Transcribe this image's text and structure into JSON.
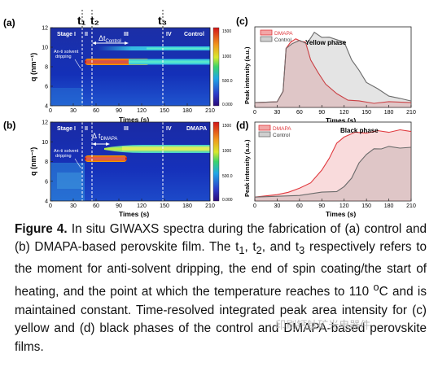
{
  "panels": {
    "a": {
      "letter": "(a)",
      "sample": "Control",
      "stages": [
        "Stage I",
        "II",
        "III",
        "IV"
      ],
      "t_labels": [
        "t₁",
        "t₂",
        "t₃"
      ],
      "interval_label": "Δt",
      "interval_sub": "Control",
      "antisolvent": [
        "An-ti solvent",
        "dripping"
      ],
      "ylabel": "q (nm⁻¹)",
      "xlabel": "Times (s)",
      "yticks": [
        "4",
        "6",
        "8",
        "10",
        "12"
      ],
      "xticks": [
        "0",
        "30",
        "60",
        "90",
        "120",
        "150",
        "180",
        "210"
      ],
      "colorbar_ticks": [
        "1500",
        "1000",
        "500.0",
        "0.000"
      ]
    },
    "b": {
      "letter": "(b)",
      "sample": "DMAPA",
      "stages": [
        "Stage I",
        "II",
        "III",
        "IV"
      ],
      "interval_label": "Δ t",
      "interval_sub": "DMAPA",
      "antisolvent": [
        "An-ti solvent",
        "dripping"
      ],
      "ylabel": "q (nm⁻¹)",
      "xlabel": "Times (s)",
      "yticks": [
        "4",
        "6",
        "8",
        "10",
        "12"
      ],
      "xticks": [
        "0",
        "30",
        "60",
        "90",
        "120",
        "150",
        "180",
        "210"
      ],
      "colorbar_ticks": [
        "1500",
        "1000",
        "500.0",
        "0.000"
      ]
    },
    "c": {
      "letter": "(c)",
      "ylabel": "Peak intensity (a.u.)",
      "xlabel": "Times (s)",
      "phase": "Yellow phase",
      "xticks": [
        "0",
        "30",
        "60",
        "90",
        "120",
        "150",
        "180",
        "210"
      ],
      "legend": [
        "DMAPA",
        "Control"
      ]
    },
    "d": {
      "letter": "(d)",
      "ylabel": "Peak intensity (a.u.)",
      "xlabel": "Times (s)",
      "phase": "Black phase",
      "xticks": [
        "0",
        "30",
        "60",
        "90",
        "120",
        "150",
        "180",
        "210"
      ],
      "legend": [
        "DMAPA",
        "Control"
      ]
    }
  },
  "colors": {
    "dmapa": "#e0393e",
    "control": "#6b6b6b",
    "stage_line": "#ffffff"
  },
  "chart_data": [
    {
      "type": "line",
      "title": "Yellow phase",
      "xlabel": "Times (s)",
      "ylabel": "Peak intensity (a.u.)",
      "xlim": [
        0,
        210
      ],
      "series": [
        {
          "name": "DMAPA",
          "x": [
            0,
            30,
            38,
            42,
            48,
            55,
            62,
            68,
            75,
            85,
            95,
            110,
            125,
            140,
            160,
            180,
            210
          ],
          "y": [
            0.06,
            0.07,
            0.2,
            0.72,
            0.82,
            0.84,
            0.83,
            0.8,
            0.6,
            0.42,
            0.3,
            0.16,
            0.1,
            0.07,
            0.06,
            0.06,
            0.06
          ]
        },
        {
          "name": "Control",
          "x": [
            0,
            30,
            38,
            42,
            50,
            60,
            70,
            80,
            90,
            100,
            110,
            120,
            130,
            140,
            150,
            165,
            180,
            195,
            210
          ],
          "y": [
            0.06,
            0.07,
            0.2,
            0.72,
            0.8,
            0.82,
            0.8,
            0.92,
            0.88,
            0.86,
            0.85,
            0.8,
            0.6,
            0.45,
            0.32,
            0.22,
            0.15,
            0.1,
            0.08
          ]
        }
      ]
    },
    {
      "type": "line",
      "title": "Black phase",
      "xlabel": "Times (s)",
      "ylabel": "Peak intensity (a.u.)",
      "xlim": [
        0,
        210
      ],
      "series": [
        {
          "name": "DMAPA",
          "x": [
            0,
            30,
            45,
            60,
            75,
            90,
            100,
            110,
            120,
            135,
            150,
            165,
            180,
            195,
            210
          ],
          "y": [
            0.05,
            0.08,
            0.12,
            0.15,
            0.24,
            0.38,
            0.55,
            0.72,
            0.82,
            0.86,
            0.87,
            0.88,
            0.88,
            0.89,
            0.88
          ]
        },
        {
          "name": "Control",
          "x": [
            0,
            30,
            60,
            90,
            110,
            120,
            130,
            140,
            150,
            160,
            170,
            180,
            195,
            210
          ],
          "y": [
            0.05,
            0.06,
            0.08,
            0.1,
            0.13,
            0.17,
            0.3,
            0.47,
            0.6,
            0.65,
            0.67,
            0.68,
            0.68,
            0.68
          ]
        }
      ]
    }
  ],
  "caption": {
    "label": "Figure 4.",
    "parts": [
      " In situ GIWAXS spectra during the fabrication of (a) control and (b) DMAPA-based perovskite film. The t",
      "1",
      ", t",
      "2",
      ", and t",
      "3",
      " respectively refers to the moment for anti-solvent dripping, the end of spin coating/the start of heating, and the point at which the temperature reaches to 110 ",
      "o",
      "C and is maintained constant. Time-resolved integrated peak area intensity for (c) yellow and (d) black phases of the control and DMAPA-based perovskite films."
    ]
  },
  "watermark": "· 印刷钙钛矿光电器件"
}
